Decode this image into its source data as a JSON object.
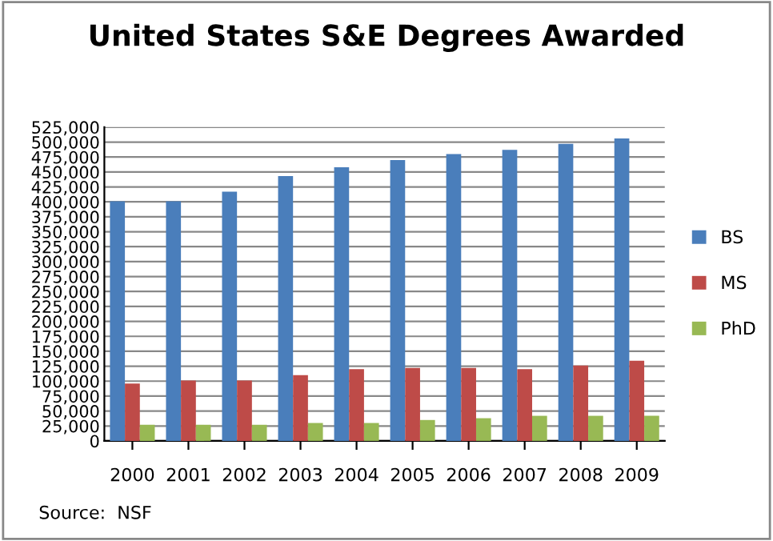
{
  "chart_data": {
    "type": "bar",
    "title": "United States S&E Degrees Awarded",
    "categories": [
      "2000",
      "2001",
      "2002",
      "2003",
      "2004",
      "2005",
      "2006",
      "2007",
      "2008",
      "2009"
    ],
    "series": [
      {
        "name": "BS",
        "color": "#4a7ebb",
        "values": [
          401000,
          401000,
          417000,
          443000,
          458000,
          470000,
          480000,
          487000,
          497000,
          506000
        ]
      },
      {
        "name": "MS",
        "color": "#be4b48",
        "values": [
          96000,
          101000,
          101000,
          110000,
          120000,
          122000,
          122000,
          120000,
          126000,
          134000
        ]
      },
      {
        "name": "PhD",
        "color": "#98b954",
        "values": [
          27000,
          27000,
          27000,
          30000,
          30000,
          35000,
          38000,
          42000,
          42000,
          42000
        ]
      }
    ],
    "ylim": [
      0,
      525000
    ],
    "yticks": [
      {
        "value": 0,
        "label": "0"
      },
      {
        "value": 25000,
        "label": "25,000"
      },
      {
        "value": 50000,
        "label": "50,000"
      },
      {
        "value": 75000,
        "label": "75,000"
      },
      {
        "value": 100000,
        "label": "100,000"
      },
      {
        "value": 125000,
        "label": "125,000"
      },
      {
        "value": 150000,
        "label": "150,000"
      },
      {
        "value": 175000,
        "label": "175,000"
      },
      {
        "value": 200000,
        "label": "200,000"
      },
      {
        "value": 225000,
        "label": "225,000"
      },
      {
        "value": 250000,
        "label": "250,000"
      },
      {
        "value": 275000,
        "label": "275,000"
      },
      {
        "value": 300000,
        "label": "300,000"
      },
      {
        "value": 325000,
        "label": "325,000"
      },
      {
        "value": 350000,
        "label": "350,000"
      },
      {
        "value": 375000,
        "label": "375,000"
      },
      {
        "value": 400000,
        "label": "400,000"
      },
      {
        "value": 425000,
        "label": "425,000"
      },
      {
        "value": 450000,
        "label": "450,000"
      },
      {
        "value": 475000,
        "label": "475,000"
      },
      {
        "value": 500000,
        "label": "500,000"
      },
      {
        "value": 525000,
        "label": "525,000"
      }
    ],
    "grid": "y",
    "legend": "right",
    "annotations": [
      "Source:  NSF"
    ]
  }
}
